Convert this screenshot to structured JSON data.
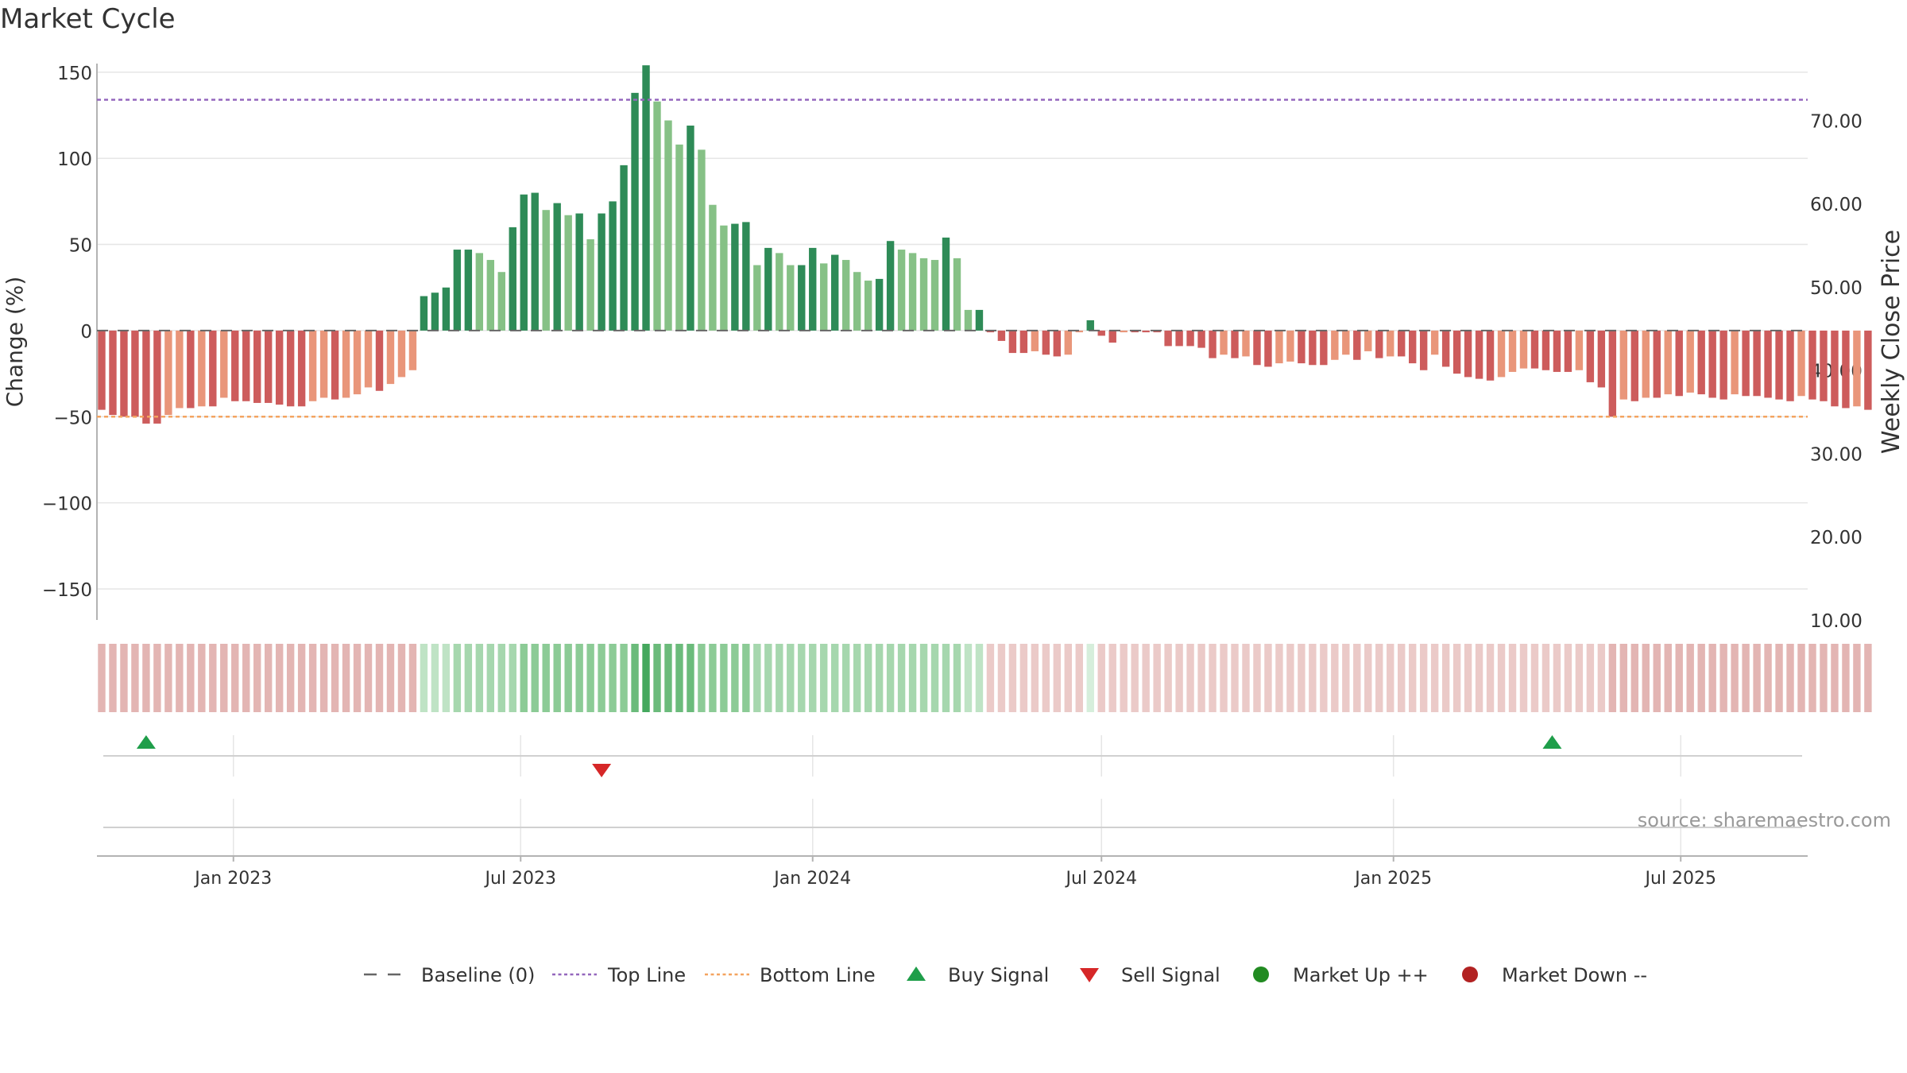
{
  "chart_data": {
    "type": "bar",
    "title": "Market Cycle",
    "ylabel_left": "Change (%)",
    "ylabel_right": "Weekly Close Price",
    "source": "source: sharemaestro.com",
    "y_left_ticks": [
      "150",
      "100",
      "50",
      "0",
      "−50",
      "−100",
      "−150"
    ],
    "y_left_tick_values": [
      150,
      100,
      50,
      0,
      -50,
      -100,
      -150
    ],
    "y_right_ticks": [
      "70.00",
      "60.00",
      "50.00",
      "40.00",
      "30.00",
      "20.00",
      "10.00"
    ],
    "y_right_tick_values": [
      70,
      60,
      50,
      40,
      30,
      20,
      10
    ],
    "y_left_range": [
      -168,
      155
    ],
    "y_right_range": [
      10,
      76.8
    ],
    "x_ticks": [
      "Jan 2023",
      "Jul 2023",
      "Jan 2024",
      "Jul 2024",
      "Jan 2025",
      "Jul 2025"
    ],
    "x_tick_dates": [
      "2023-01-01",
      "2023-07-01",
      "2024-01-01",
      "2024-07-01",
      "2025-01-01",
      "2025-07-01"
    ],
    "x_range": [
      "2022-10-07",
      "2025-09-19"
    ],
    "first_week": "2022-10-10",
    "week_step_days": 7,
    "top_line": 134,
    "bottom_line": -50,
    "baseline": 0,
    "values": [
      -46,
      -49,
      -50,
      -50,
      -54,
      -54,
      -49,
      -45,
      -45,
      -44,
      -44,
      -39,
      -41,
      -41,
      -42,
      -42,
      -43,
      -44,
      -44,
      -41,
      -39,
      -40,
      -39,
      -37,
      -33,
      -35,
      -31,
      -27,
      -23,
      20,
      22,
      25,
      47,
      47,
      45,
      41,
      34,
      60,
      79,
      80,
      70,
      74,
      67,
      68,
      53,
      68,
      75,
      96,
      138,
      154,
      133,
      122,
      108,
      119,
      105,
      73,
      61,
      62,
      63,
      38,
      48,
      45,
      38,
      38,
      48,
      39,
      44,
      41,
      34,
      29,
      30,
      52,
      47,
      45,
      42,
      41,
      54,
      42,
      12,
      12,
      -1,
      -6,
      -13,
      -13,
      -12,
      -14,
      -15,
      -14,
      -1,
      6,
      -3,
      -7,
      -1,
      -1,
      -1,
      -1,
      -9,
      -9,
      -9,
      -10,
      -16,
      -14,
      -16,
      -15,
      -20,
      -21,
      -19,
      -18,
      -19,
      -20,
      -20,
      -17,
      -14,
      -17,
      -12,
      -16,
      -15,
      -15,
      -19,
      -23,
      -14,
      -21,
      -25,
      -27,
      -28,
      -29,
      -27,
      -24,
      -22,
      -22,
      -23,
      -24,
      -24,
      -23,
      -30,
      -33,
      -50,
      -40,
      -41,
      -39,
      -39,
      -37,
      -38,
      -36,
      -37,
      -39,
      -40,
      -37,
      -38,
      -38,
      -39,
      -40,
      -41,
      -38,
      -40,
      -41,
      -44,
      -45,
      -44,
      -46
    ],
    "strength_levels": [
      2,
      2,
      2,
      2,
      2,
      2,
      2,
      2,
      2,
      2,
      2,
      2,
      2,
      2,
      2,
      2,
      2,
      2,
      2,
      2,
      2,
      2,
      2,
      2,
      2,
      2,
      2,
      2,
      2,
      1,
      1,
      1,
      2,
      2,
      2,
      2,
      2,
      2,
      3,
      3,
      3,
      3,
      3,
      3,
      3,
      3,
      3,
      3,
      4,
      5,
      4,
      4,
      4,
      4,
      3,
      3,
      3,
      3,
      3,
      2,
      2,
      2,
      2,
      2,
      2,
      2,
      2,
      2,
      2,
      2,
      2,
      2,
      2,
      2,
      2,
      2,
      2,
      2,
      1,
      1,
      1,
      1,
      1,
      1,
      1,
      1,
      1,
      1,
      1,
      0,
      1,
      1,
      1,
      1,
      1,
      1,
      1,
      1,
      1,
      1,
      1,
      1,
      1,
      1,
      1,
      1,
      1,
      1,
      1,
      1,
      1,
      1,
      1,
      1,
      1,
      1,
      1,
      1,
      1,
      1,
      1,
      1,
      1,
      1,
      1,
      1,
      1,
      1,
      1,
      1,
      1,
      1,
      1,
      1,
      1,
      1,
      2,
      2,
      2,
      2,
      2,
      2,
      2,
      2,
      2,
      2,
      2,
      2,
      2,
      2,
      2,
      2,
      2,
      2,
      2,
      2,
      2,
      2,
      2,
      2
    ],
    "buy_signals": [
      "2022-11-07",
      "2025-04-11"
    ],
    "sell_signals": [
      "2023-08-21"
    ],
    "colors": {
      "pos_dark": "#2e8b57",
      "pos_light": "#86c186",
      "neg_dark": "#cd5c5c",
      "neg_light": "#e9967a",
      "top_line": "#9467bd",
      "bottom_line": "#f4a460",
      "baseline": "#666666",
      "buy": "#1f9e4a",
      "sell": "#d62728",
      "market_up": "#228b22",
      "market_down": "#b22222",
      "grid": "#e6e6e6",
      "axis": "#b3b3b3",
      "text": "#333333",
      "source": "#999999"
    },
    "legend": [
      {
        "key": "baseline",
        "label": "Baseline (0)",
        "marker": "dashed-line"
      },
      {
        "key": "top_line",
        "label": "Top Line",
        "marker": "dotted-line"
      },
      {
        "key": "bottom_line",
        "label": "Bottom Line",
        "marker": "dotted-line"
      },
      {
        "key": "buy",
        "label": "Buy Signal",
        "marker": "triangle-up"
      },
      {
        "key": "sell",
        "label": "Sell Signal",
        "marker": "triangle-down"
      },
      {
        "key": "market_up",
        "label": "Market Up ++",
        "marker": "circle"
      },
      {
        "key": "market_down",
        "label": "Market Down --",
        "marker": "circle"
      }
    ],
    "legend_position": "bottom",
    "grid": true
  }
}
